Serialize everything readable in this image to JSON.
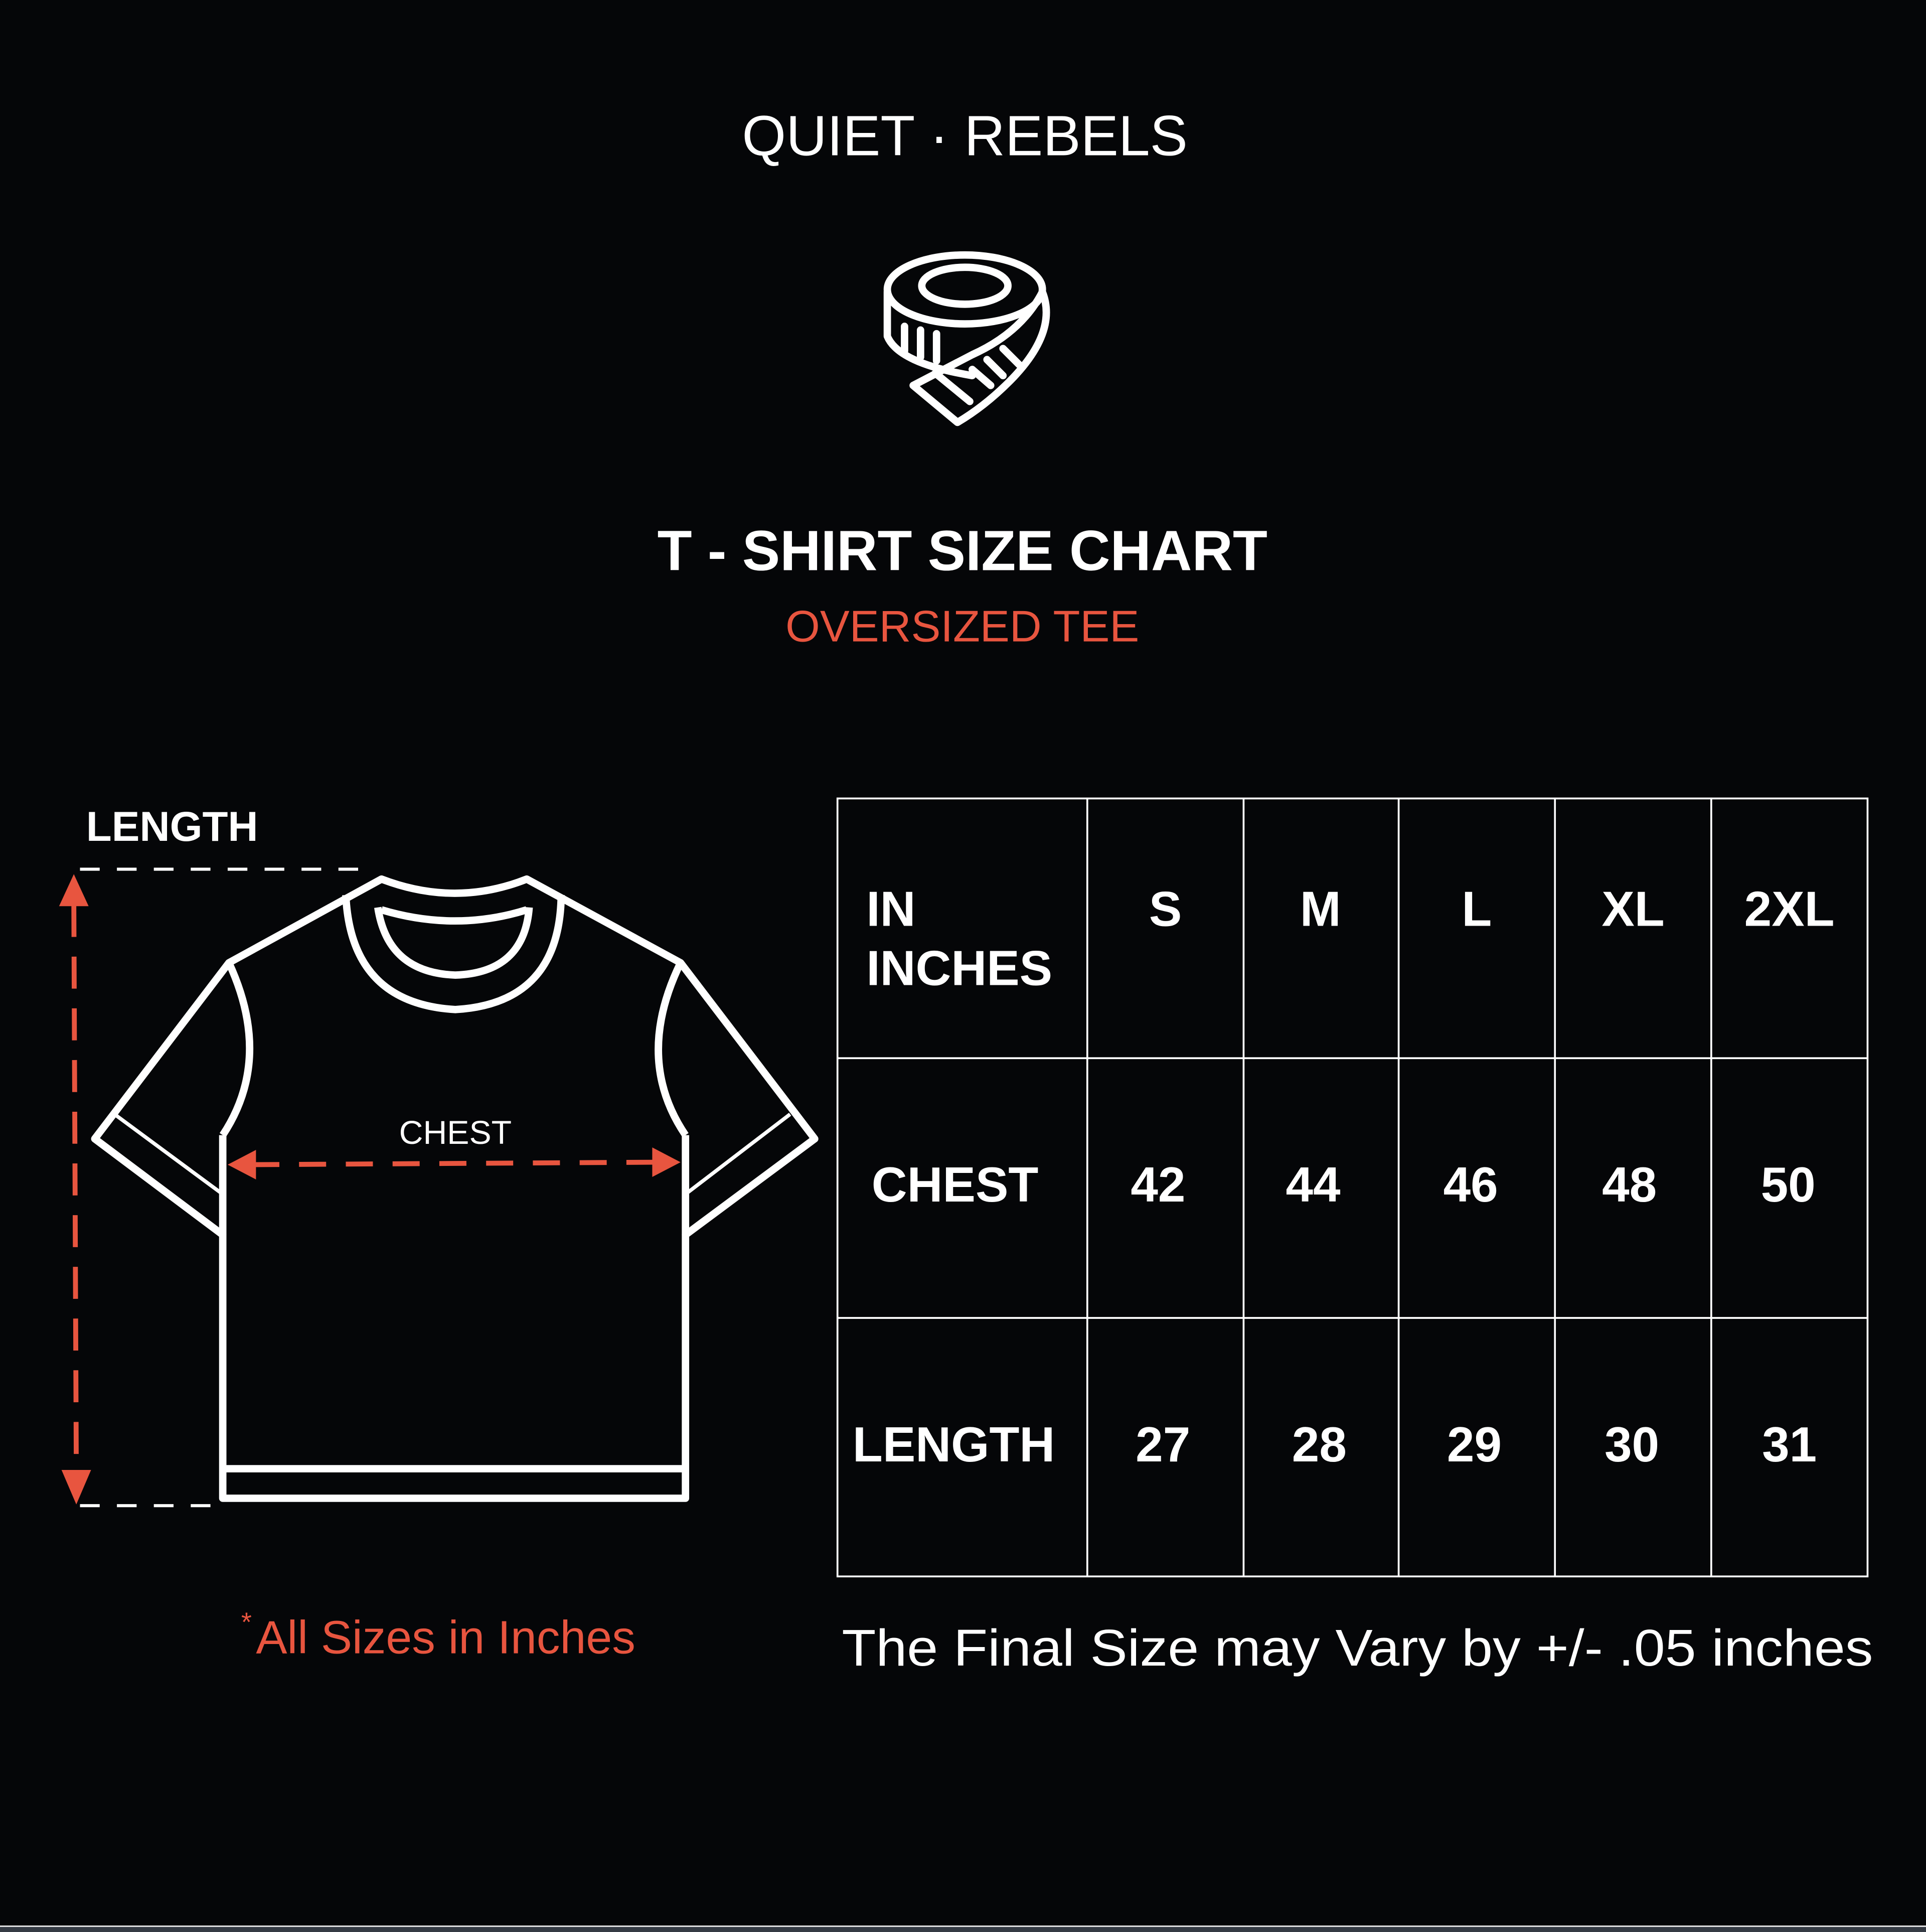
{
  "brand": "QUIET · REBELS",
  "icon": "measuring-tape-icon",
  "title": "T - SHIRT SIZE CHART",
  "subtitle": "OVERSIZED TEE",
  "diagram": {
    "length_label": "LENGTH",
    "chest_label": "CHEST",
    "icon": "tshirt-outline-icon"
  },
  "table": {
    "header": [
      "IN",
      "INCHES"
    ],
    "sizes": [
      "S",
      "M",
      "L",
      "XL",
      "2XL"
    ],
    "rows": [
      {
        "label": "CHEST",
        "values": [
          "42",
          "44",
          "46",
          "48",
          "50"
        ]
      },
      {
        "label": "LENGTH",
        "values": [
          "27",
          "28",
          "29",
          "30",
          "31"
        ]
      }
    ]
  },
  "note_asterisk": "*",
  "note": "All Sizes in Inches",
  "disclaimer": "The Final Size may Vary by +/- .05 inches",
  "colors": {
    "background": "#050608",
    "accent": "#e8553f",
    "foreground": "#ffffff"
  }
}
